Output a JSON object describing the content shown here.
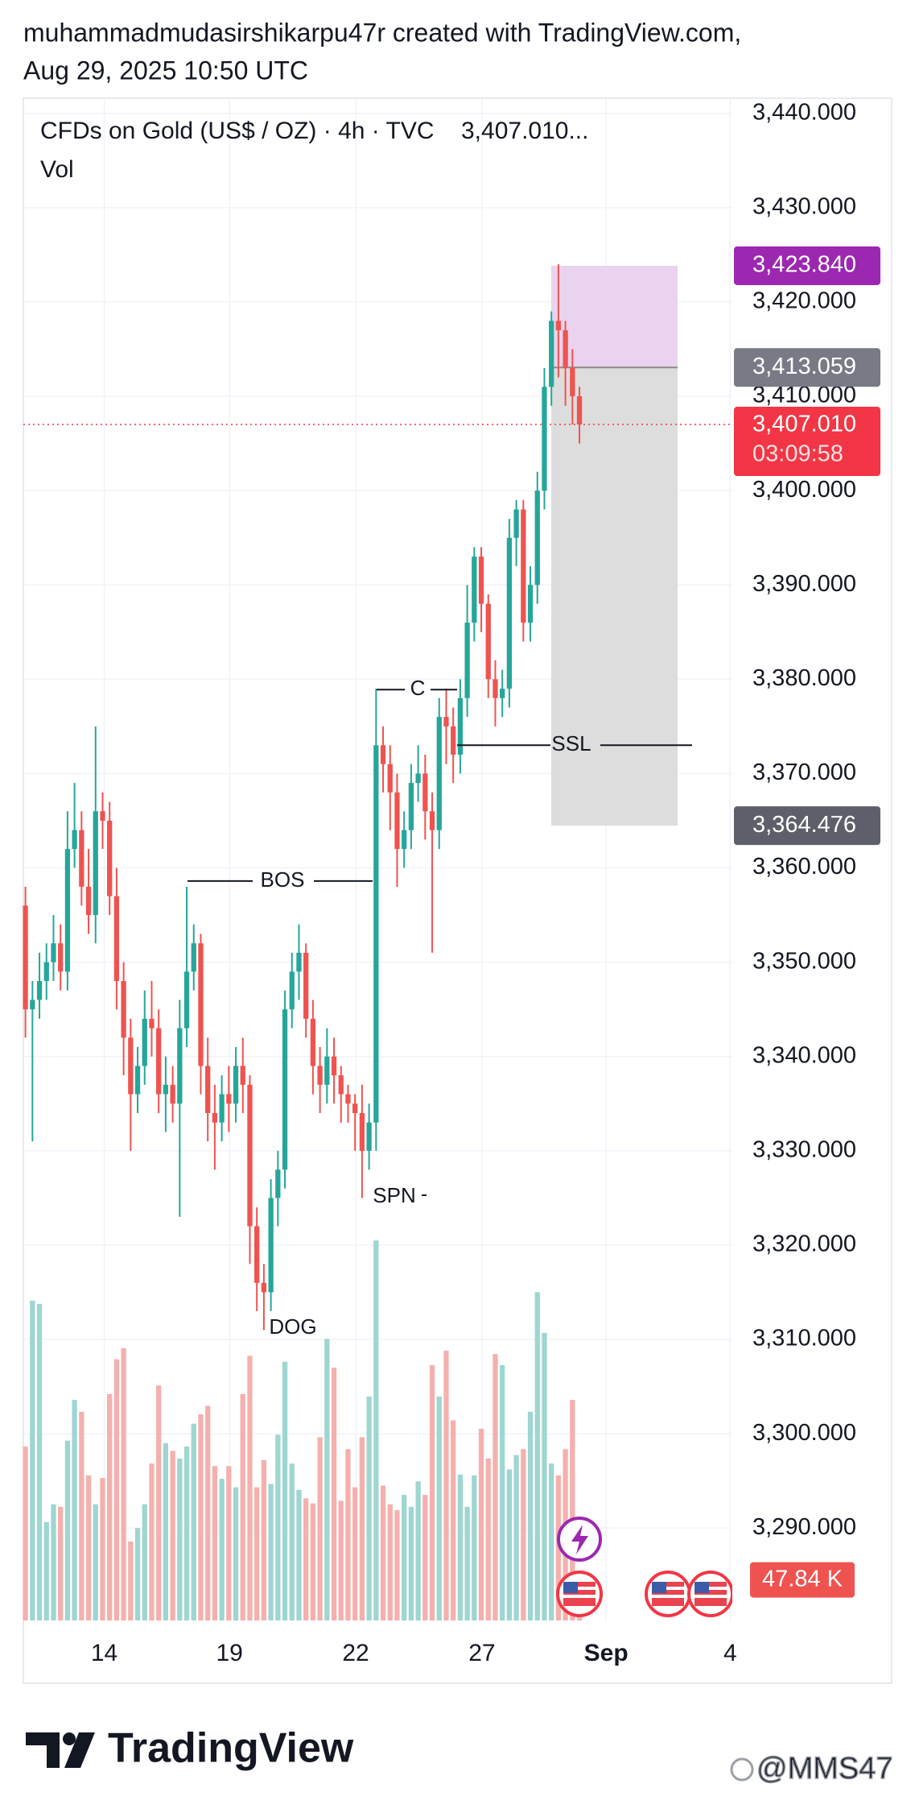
{
  "header": {
    "line1": "muhammadmudasirshikarpu47r created with TradingView.com,",
    "line2": "Aug 29, 2025 10:50 UTC"
  },
  "chart_data": {
    "type": "candlestick",
    "title": "CFDs on Gold (US$ / OZ) · 4h · TVC",
    "last_price_label": "3,407.010...",
    "volume_title": "Vol",
    "up_color": "#26a69a",
    "down_color": "#ef5350",
    "volume_up_color": "#9ed6d1",
    "volume_down_color": "#f5b0ae",
    "grid": true,
    "xlim": [
      -0.3,
      100.8
    ],
    "ylim": [
      3280.2,
      3441.6
    ],
    "vlim": [
      0,
      450
    ],
    "xticks": [
      {
        "value": 11.24,
        "label": "14"
      },
      {
        "value": 29.1,
        "label": "19"
      },
      {
        "value": 47.1,
        "label": "22"
      },
      {
        "value": 65.1,
        "label": "27"
      },
      {
        "value": 82.8,
        "label": "Sep"
      },
      {
        "value": 100.5,
        "label": "4"
      }
    ],
    "yticks": [
      {
        "value": 3440,
        "label": "3,440.000"
      },
      {
        "value": 3430,
        "label": "3,430.000"
      },
      {
        "value": 3420,
        "label": "3,420.000"
      },
      {
        "value": 3410,
        "label": "3,410.000"
      },
      {
        "value": 3400,
        "label": "3,400.000"
      },
      {
        "value": 3390,
        "label": "3,390.000"
      },
      {
        "value": 3380,
        "label": "3,380.000"
      },
      {
        "value": 3370,
        "label": "3,370.000"
      },
      {
        "value": 3360,
        "label": "3,360.000"
      },
      {
        "value": 3350,
        "label": "3,350.000"
      },
      {
        "value": 3340,
        "label": "3,340.000"
      },
      {
        "value": 3330,
        "label": "3,330.000"
      },
      {
        "value": 3320,
        "label": "3,320.000"
      },
      {
        "value": 3310,
        "label": "3,310.000"
      },
      {
        "value": 3300,
        "label": "3,300.000"
      },
      {
        "value": 3290,
        "label": "3,290.000"
      }
    ],
    "open": [
      3356,
      3345,
      3346,
      3348,
      3350,
      3352,
      3349,
      3362,
      3364,
      3358,
      3355,
      3366,
      3365,
      3357,
      3348,
      3342,
      3336,
      3339,
      3344,
      3343,
      3336,
      3337,
      3335,
      3343,
      3349,
      3352,
      3339,
      3334,
      3333,
      3336,
      3335,
      3339,
      3337,
      3322,
      3316,
      3315,
      3325,
      3328,
      3345,
      3349,
      3351,
      3344,
      3339,
      3337,
      3340,
      3338,
      3336,
      3335,
      3334,
      3330,
      3333,
      3373,
      3371,
      3368,
      3362,
      3364,
      3369,
      3370,
      3366,
      3364,
      3376,
      3375,
      3372,
      3378,
      3386,
      3393,
      3388,
      3380,
      3378,
      3379,
      3395,
      3398,
      3386,
      3390,
      3400,
      3411,
      3418,
      3417,
      3413,
      3410
    ],
    "high": [
      3358,
      3348,
      3351,
      3352,
      3355,
      3354,
      3366,
      3369,
      3366,
      3362,
      3375,
      3368,
      3367,
      3360,
      3350,
      3344,
      3341,
      3347,
      3348,
      3345,
      3340,
      3339,
      3346,
      3358,
      3354,
      3353,
      3342,
      3337,
      3338,
      3339,
      3341,
      3342,
      3338,
      3324,
      3318,
      3327,
      3330,
      3347,
      3351,
      3354,
      3352,
      3346,
      3341,
      3343,
      3342,
      3339,
      3337,
      3336,
      3337,
      3335,
      3379,
      3375,
      3373,
      3370,
      3366,
      3371,
      3373,
      3372,
      3368,
      3378,
      3379,
      3377,
      3380,
      3390,
      3394,
      3394,
      3389,
      3382,
      3381,
      3397,
      3399,
      3399,
      3392,
      3402,
      3413,
      3419,
      3424,
      3418,
      3415,
      3411
    ],
    "low": [
      3342,
      3331,
      3344,
      3346,
      3348,
      3347,
      3347,
      3360,
      3356,
      3353,
      3352,
      3362,
      3355,
      3345,
      3338,
      3330,
      3334,
      3337,
      3340,
      3334,
      3332,
      3333,
      3323,
      3341,
      3347,
      3336,
      3331,
      3328,
      3331,
      3332,
      3333,
      3334,
      3318,
      3313,
      3311,
      3313,
      3322,
      3326,
      3343,
      3346,
      3342,
      3336,
      3334,
      3335,
      3335,
      3333,
      3333,
      3330,
      3325,
      3328,
      3330,
      3368,
      3364,
      3358,
      3360,
      3362,
      3367,
      3363,
      3351,
      3362,
      3371,
      3369,
      3370,
      3376,
      3384,
      3385,
      3378,
      3375,
      3376,
      3377,
      3392,
      3384,
      3384,
      3388,
      3398,
      3409,
      3412,
      3409,
      3407,
      3405
    ],
    "close": [
      3345,
      3346,
      3348,
      3350,
      3352,
      3349,
      3362,
      3364,
      3358,
      3355,
      3366,
      3365,
      3357,
      3348,
      3342,
      3336,
      3339,
      3344,
      3343,
      3336,
      3337,
      3335,
      3343,
      3349,
      3352,
      3339,
      3334,
      3333,
      3336,
      3335,
      3339,
      3337,
      3322,
      3316,
      3315,
      3325,
      3328,
      3345,
      3349,
      3351,
      3344,
      3339,
      3337,
      3340,
      3338,
      3336,
      3335,
      3334,
      3330,
      3333,
      3373,
      3371,
      3368,
      3362,
      3364,
      3369,
      3370,
      3366,
      3364,
      3376,
      3375,
      3372,
      3378,
      3386,
      3393,
      3388,
      3380,
      3378,
      3379,
      3395,
      3398,
      3386,
      3390,
      3400,
      3411,
      3418,
      3417,
      3413,
      3410,
      3407.01
    ],
    "volume": [
      205,
      377,
      373,
      116,
      137,
      134,
      212,
      260,
      246,
      171,
      137,
      168,
      267,
      308,
      321,
      93,
      109,
      137,
      185,
      277,
      209,
      200,
      191,
      205,
      232,
      243,
      253,
      182,
      167,
      182,
      157,
      267,
      312,
      157,
      189,
      161,
      219,
      305,
      185,
      154,
      144,
      138,
      216,
      332,
      298,
      141,
      202,
      157,
      216,
      264,
      448,
      159,
      137,
      130,
      148,
      134,
      164,
      148,
      301,
      264,
      318,
      236,
      172,
      134,
      171,
      226,
      191,
      314,
      301,
      178,
      195,
      202,
      246,
      387,
      339,
      185,
      171,
      202,
      260,
      47.84
    ],
    "volume_badge": "47.84 K",
    "current_price": {
      "value": 3407.01,
      "label": "3,407.010",
      "countdown": "03:09:58",
      "color": "#f23645"
    },
    "position_tool": {
      "top": {
        "value": 3423.84,
        "label": "3,423.840",
        "color": "#9c27b0"
      },
      "entry": {
        "value": 3413.059,
        "label": "3,413.059",
        "color": "#787b86"
      },
      "bottom": {
        "value": 3364.476,
        "label": "3,364.476",
        "color": "#5d606b"
      }
    },
    "annotations": [
      {
        "text": "BOS",
        "price": 3358.6
      },
      {
        "text": "C",
        "price": 3378.9
      },
      {
        "text": "SSL",
        "price": 3373
      },
      {
        "text": "SPN"
      },
      {
        "text": "DOG"
      }
    ]
  },
  "footer": {
    "logo": "TradingView",
    "watermark": "@MMS47"
  }
}
